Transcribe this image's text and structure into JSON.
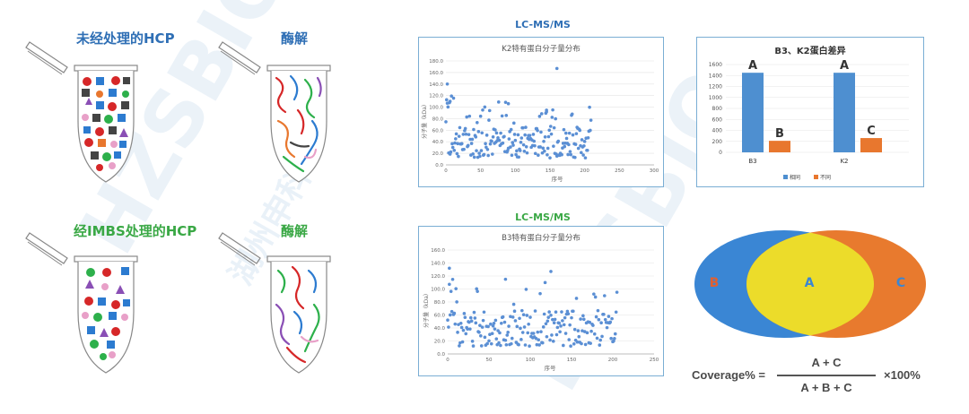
{
  "left": {
    "row1_title": "未经处理的HCP",
    "row1_digest": "酶解",
    "row2_title": "经IMBS处理的HCP",
    "row2_digest": "酶解"
  },
  "middle": {
    "label1": "LC-MS/MS",
    "label2": "LC-MS/MS"
  },
  "chart_data": [
    {
      "type": "scatter",
      "title": "K2特有蛋白分子量分布",
      "xlabel": "序号",
      "ylabel": "分子量（kDa）",
      "xlim": [
        0,
        300
      ],
      "ylim": [
        0,
        180
      ],
      "xticks": [
        "0",
        "50",
        "100",
        "150",
        "200",
        "250",
        "300"
      ],
      "yticks": [
        "0.0",
        "20.0",
        "40.0",
        "60.0",
        "80.0",
        "100.0",
        "120.0",
        "140.0",
        "160.0",
        "180.0"
      ],
      "color": "#5b8fd4"
    },
    {
      "type": "scatter",
      "title": "B3特有蛋白分子量分布",
      "xlabel": "序号",
      "ylabel": "分子量（kDa）",
      "xlim": [
        0,
        250
      ],
      "ylim": [
        0,
        160
      ],
      "xticks": [
        "0",
        "50",
        "100",
        "150",
        "200",
        "250"
      ],
      "yticks": [
        "0.0",
        "20.0",
        "40.0",
        "60.0",
        "80.0",
        "100.0",
        "120.0",
        "140.0",
        "160.0"
      ],
      "color": "#5b8fd4"
    },
    {
      "type": "bar",
      "title": "B3、K2蛋白差异",
      "categories": [
        "B3",
        "K2"
      ],
      "series": [
        {
          "name": "相同",
          "values": [
            1450,
            1450
          ],
          "labels": [
            "A",
            "A"
          ],
          "color": "#4e8fd0"
        },
        {
          "name": "不同",
          "values": [
            210,
            260
          ],
          "labels": [
            "B",
            "C"
          ],
          "color": "#e8772e"
        }
      ],
      "ylim": [
        0,
        1600
      ],
      "yticks": [
        "0",
        "200",
        "400",
        "600",
        "800",
        "1000",
        "1200",
        "1400",
        "1600"
      ]
    }
  ],
  "venn": {
    "left_label": "B",
    "center_label": "A",
    "right_label": "C",
    "left_color": "#3a86d4",
    "center_color": "#ecdc2a",
    "right_color": "#e87a2e"
  },
  "formula": {
    "prefix": "Coverage% =",
    "numerator": "A + C",
    "denominator": "A + B + C",
    "suffix": "×100%"
  },
  "watermark": {
    "text1": "HZSBIO",
    "text2": "湖州申科"
  }
}
